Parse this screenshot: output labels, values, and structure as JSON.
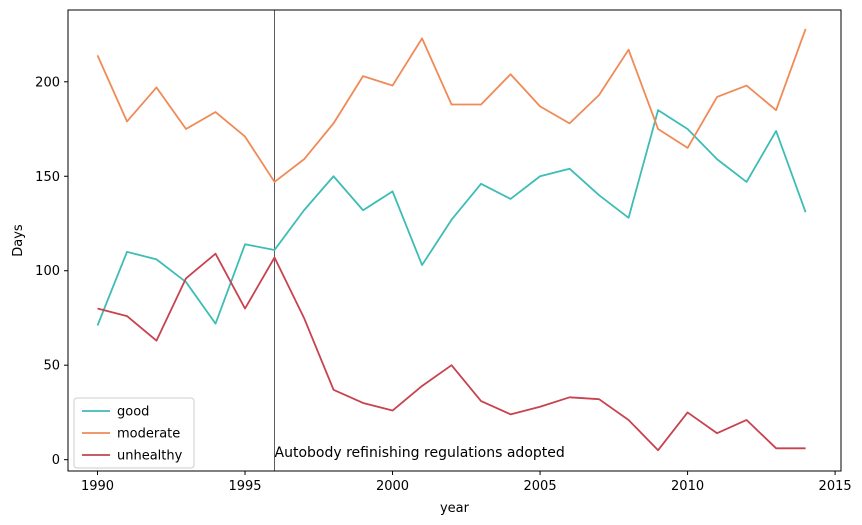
{
  "chart_data": {
    "type": "line",
    "title": "",
    "xlabel": "year",
    "ylabel": "Days",
    "xlim": [
      1989,
      2015.2
    ],
    "ylim": [
      -6,
      238
    ],
    "x_ticks": [
      1990,
      1995,
      2000,
      2005,
      2010,
      2015
    ],
    "y_ticks": [
      0,
      50,
      100,
      150,
      200
    ],
    "grid": false,
    "legend_position": "bottom-left",
    "x": [
      1990,
      1991,
      1992,
      1993,
      1994,
      1995,
      1996,
      1997,
      1998,
      1999,
      2000,
      2001,
      2002,
      2003,
      2004,
      2005,
      2006,
      2007,
      2008,
      2009,
      2010,
      2011,
      2012,
      2013,
      2014
    ],
    "series": [
      {
        "name": "good",
        "color": "#3dbdb5",
        "values": [
          71,
          110,
          106,
          94,
          72,
          114,
          111,
          132,
          150,
          132,
          142,
          103,
          127,
          146,
          138,
          150,
          154,
          140,
          128,
          185,
          175,
          159,
          147,
          174,
          131
        ]
      },
      {
        "name": "moderate",
        "color": "#f08a56",
        "values": [
          214,
          179,
          197,
          175,
          184,
          171,
          147,
          159,
          178,
          203,
          198,
          223,
          188,
          188,
          204,
          187,
          178,
          193,
          217,
          175,
          165,
          192,
          198,
          185,
          228
        ]
      },
      {
        "name": "unhealthy",
        "color": "#c8424f",
        "values": [
          80,
          76,
          63,
          96,
          109,
          80,
          107,
          75,
          37,
          30,
          26,
          39,
          50,
          31,
          24,
          28,
          33,
          32,
          21,
          5,
          25,
          14,
          21,
          6,
          6
        ]
      }
    ],
    "annotations": [
      {
        "type": "vline",
        "x": 1996,
        "color": "#333333"
      },
      {
        "type": "text",
        "x": 1996,
        "y": 2,
        "text": "Autobody refinishing regulations adopted"
      }
    ]
  }
}
